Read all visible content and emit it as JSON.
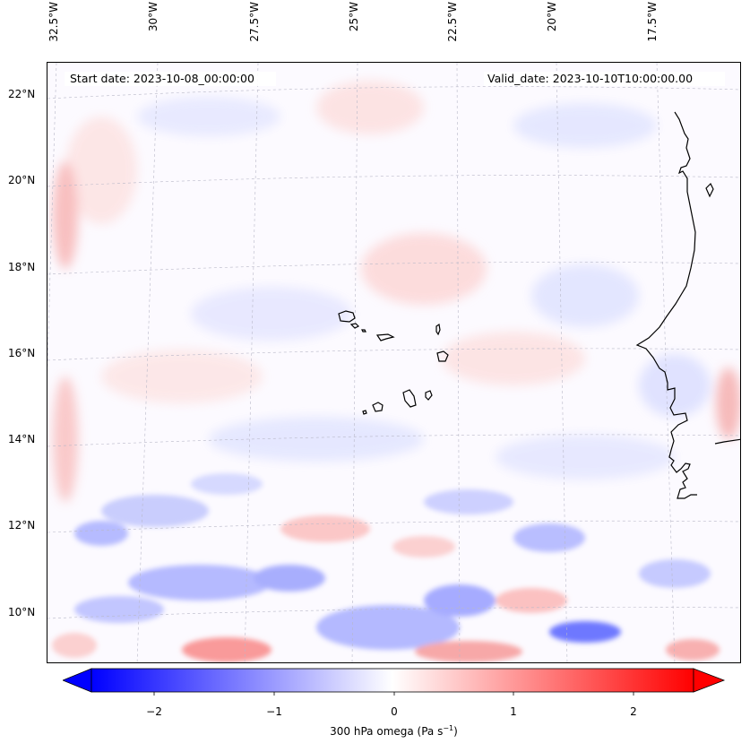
{
  "map": {
    "projection": "Lambert Conformal",
    "region": "Eastern tropical Atlantic / Cape Verde",
    "lon_ticks": [
      "32.5°W",
      "30°W",
      "27.5°W",
      "25°W",
      "22.5°W",
      "20°W",
      "17.5°W"
    ],
    "lat_ticks": [
      "22°N",
      "20°N",
      "18°N",
      "16°N",
      "14°N",
      "12°N",
      "10°N"
    ],
    "start_date": "Start date: 2023-10-08_00:00:00",
    "valid_date": "Valid_date: 2023-10-10T10:00:00.00"
  },
  "colorbar": {
    "ticks": [
      "−2",
      "−1",
      "0",
      "1",
      "2"
    ],
    "tick_values": [
      -2,
      -1,
      0,
      1,
      2
    ],
    "range": [
      -2.5,
      2.5
    ],
    "label": "300 hPa omega (Pa s",
    "label_sup": "−1",
    "label_end": ")",
    "colormap": "bwr",
    "min_color": "#0000ff",
    "mid_color": "#ffffff",
    "max_color": "#ff0000"
  }
}
